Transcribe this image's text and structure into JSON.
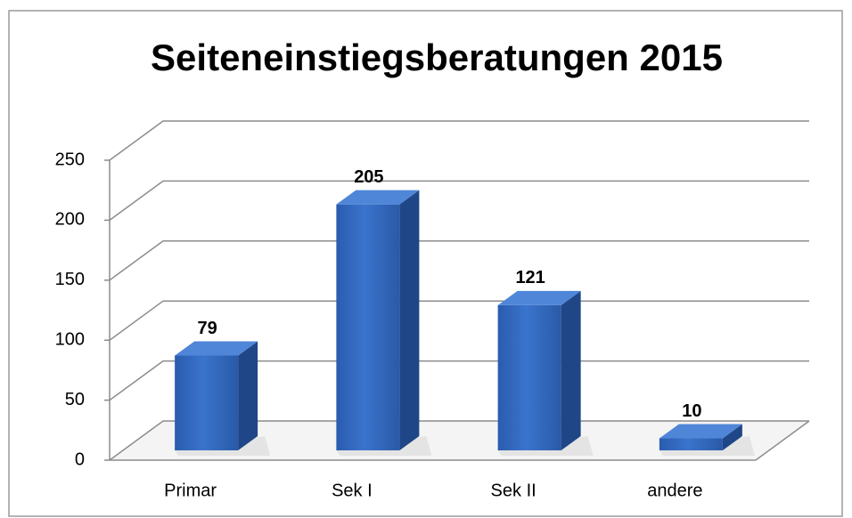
{
  "chart_data": {
    "type": "bar3d",
    "title": "Seiteneinstiegsberatungen 2015",
    "categories": [
      "Primar",
      "Sek I",
      "Sek II",
      "andere"
    ],
    "values": [
      79,
      205,
      121,
      10
    ],
    "color": "#2f66bb",
    "ylim": [
      0,
      250
    ],
    "yticks": [
      0,
      50,
      100,
      150,
      200,
      250
    ],
    "grid": true
  }
}
